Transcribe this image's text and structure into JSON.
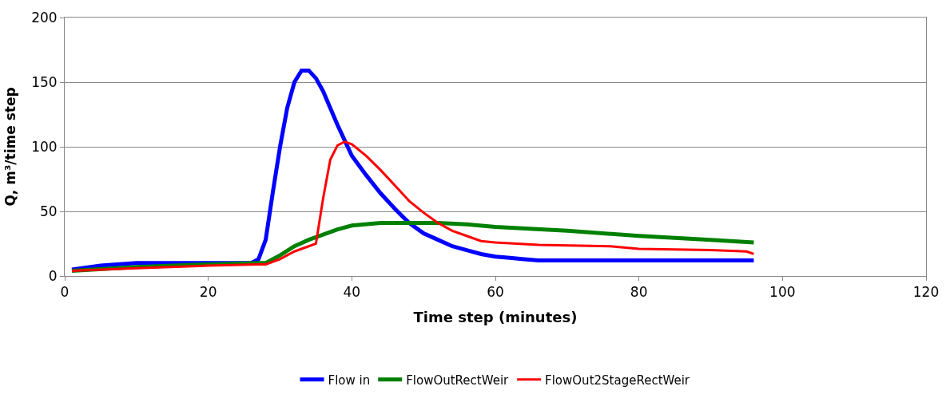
{
  "chart_data": {
    "type": "line",
    "xlabel": "Time step (minutes)",
    "ylabel": "Q, m³/time step",
    "xlim": [
      0,
      120
    ],
    "xticks": [
      0,
      20,
      40,
      60,
      80,
      100,
      120
    ],
    "ylim": [
      0,
      200
    ],
    "yticks": [
      0,
      50,
      100,
      150,
      200
    ],
    "grid": "y",
    "legend": "bottom",
    "marker": "none",
    "line_style": "solid",
    "series": [
      {
        "name": "Flow in",
        "color": "#0000ff",
        "x": [
          1,
          5,
          10,
          26,
          27,
          28,
          29,
          30,
          31,
          32,
          33,
          34,
          35,
          36,
          37,
          38,
          39,
          40,
          42,
          44,
          46,
          48,
          50,
          52,
          54,
          56,
          58,
          60,
          62,
          64,
          66,
          96
        ],
        "values": [
          5,
          8,
          10,
          10,
          13,
          28,
          65,
          100,
          130,
          150,
          159,
          159,
          153,
          143,
          130,
          117,
          105,
          93,
          78,
          64,
          52,
          41,
          33,
          28,
          23,
          20,
          17,
          15,
          14,
          13,
          12,
          12
        ]
      },
      {
        "name": "FlowOutRectWeir",
        "color": "#008000",
        "x": [
          1,
          10,
          20,
          27,
          28,
          30,
          32,
          34,
          36,
          38,
          40,
          44,
          52,
          56,
          60,
          70,
          80,
          90,
          96
        ],
        "values": [
          4,
          7,
          9,
          10,
          10,
          16,
          23,
          28,
          32,
          36,
          39,
          41,
          41,
          40,
          38,
          35,
          31,
          28,
          26
        ]
      },
      {
        "name": "FlowOut2StageRectWeir",
        "color": "#ff0000",
        "x": [
          1,
          10,
          20,
          27,
          28,
          30,
          32,
          34,
          35,
          36,
          37,
          38,
          39,
          40,
          42,
          44,
          46,
          48,
          50,
          52,
          54,
          56,
          58,
          60,
          66,
          76,
          80,
          90,
          95,
          96
        ],
        "values": [
          4,
          6,
          8,
          9,
          9,
          13,
          19,
          23,
          25,
          60,
          90,
          101,
          104,
          102,
          93,
          82,
          70,
          58,
          49,
          41,
          35,
          31,
          27,
          26,
          24,
          23,
          21,
          20,
          19,
          17
        ]
      }
    ]
  }
}
